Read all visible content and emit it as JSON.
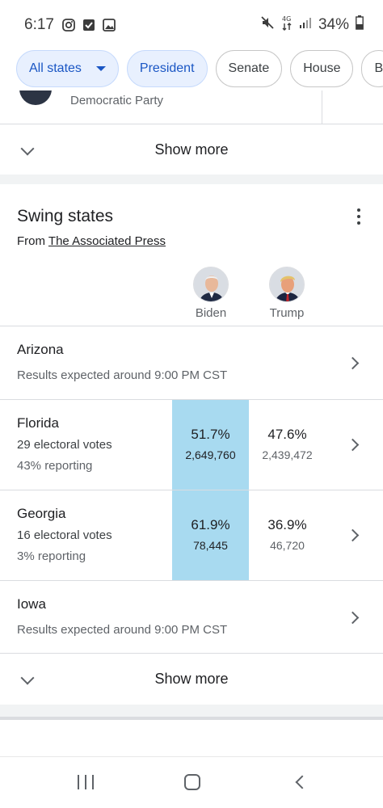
{
  "status_bar": {
    "time": "6:17",
    "battery": "34%",
    "network": "4G"
  },
  "chips": [
    {
      "label": "All states",
      "active": true,
      "has_dropdown": true
    },
    {
      "label": "President",
      "active": true
    },
    {
      "label": "Senate",
      "active": false
    },
    {
      "label": "House",
      "active": false
    },
    {
      "label": "B",
      "active": false
    }
  ],
  "top_card": {
    "party": "Democratic Party",
    "show_more": "Show more"
  },
  "swing": {
    "title": "Swing states",
    "source_prefix": "From ",
    "source_link": "The Associated Press",
    "candidates": [
      {
        "name": "Biden",
        "photo_icon": "biden-photo"
      },
      {
        "name": "Trump",
        "photo_icon": "trump-photo"
      }
    ],
    "states": [
      {
        "name": "Arizona",
        "note": "Results expected around 9:00 PM CST"
      },
      {
        "name": "Florida",
        "electoral": "29 electoral votes",
        "reporting": "43% reporting",
        "biden_pct": "51.7%",
        "biden_votes": "2,649,760",
        "trump_pct": "47.6%",
        "trump_votes": "2,439,472"
      },
      {
        "name": "Georgia",
        "electoral": "16 electoral votes",
        "reporting": "3% reporting",
        "biden_pct": "61.9%",
        "biden_votes": "78,445",
        "trump_pct": "36.9%",
        "trump_votes": "46,720"
      },
      {
        "name": "Iowa",
        "note": "Results expected around 9:00 PM CST"
      }
    ],
    "show_more": "Show more"
  },
  "colors": {
    "chip_active_bg": "#e8f0fe",
    "chip_active_text": "#1a56c4",
    "leading_cell": "#a8daf0",
    "divider": "#dadce0"
  }
}
